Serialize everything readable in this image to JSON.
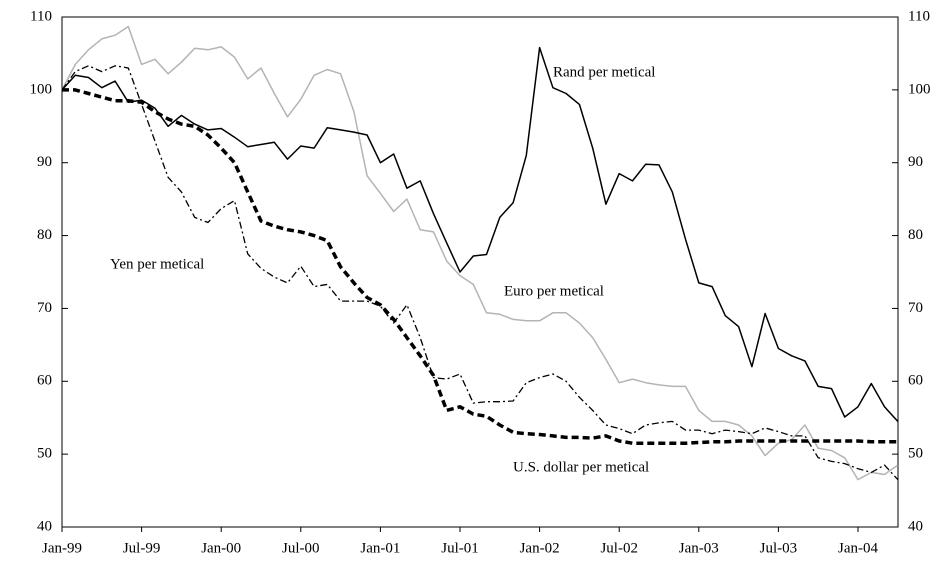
{
  "chart_data": {
    "type": "line",
    "categories": [
      "Jan-99",
      null,
      null,
      null,
      null,
      null,
      "Jul-99",
      null,
      null,
      null,
      null,
      null,
      "Jan-00",
      null,
      null,
      null,
      null,
      null,
      "Jul-00",
      null,
      null,
      null,
      null,
      null,
      "Jan-01",
      null,
      null,
      null,
      null,
      null,
      "Jul-01",
      null,
      null,
      null,
      null,
      null,
      "Jan-02",
      null,
      null,
      null,
      null,
      null,
      "Jul-02",
      null,
      null,
      null,
      null,
      null,
      "Jan-03",
      null,
      null,
      null,
      null,
      null,
      "Jul-03",
      null,
      null,
      null,
      null,
      null,
      "Jan-04",
      null,
      null,
      null
    ],
    "ylim": [
      40,
      110
    ],
    "yticks": [
      40,
      50,
      60,
      70,
      80,
      90,
      100,
      110
    ],
    "y2lim": [
      40,
      110
    ],
    "y2ticks": [
      40,
      50,
      60,
      70,
      80,
      90,
      100,
      110
    ],
    "series": [
      {
        "name": "Rand per metical",
        "color": "#000000",
        "values": [
          100,
          102,
          101.7,
          100.3,
          101.2,
          98.3,
          98.6,
          97.5,
          95,
          96.5,
          95.3,
          94.5,
          94.7,
          93.5,
          92.2,
          92.5,
          92.8,
          90.5,
          92.3,
          92,
          94.8,
          94.5,
          94.2,
          93.8,
          90,
          91.2,
          86.5,
          87.5,
          83,
          79,
          75,
          77.2,
          77.4,
          82.5,
          84.5,
          91,
          105.8,
          100.3,
          99.5,
          98,
          92,
          84.3,
          88.5,
          87.5,
          89.8,
          89.7,
          86,
          79.5,
          73.5,
          73,
          69,
          67.5,
          62,
          69.3,
          64.5,
          63.5,
          62.8,
          59.3,
          59,
          55.1,
          56.5,
          59.7,
          56.5,
          54.5
        ]
      },
      {
        "name": "Euro per metical",
        "color": "#b4b4b4",
        "values": [
          100,
          103.5,
          105.5,
          107,
          107.5,
          108.7,
          103.5,
          104.2,
          102.2,
          103.8,
          105.7,
          105.5,
          105.9,
          104.5,
          101.5,
          103,
          99.5,
          96.3,
          98.7,
          102,
          102.8,
          102.2,
          97,
          88.2,
          85.8,
          83.3,
          85,
          80.8,
          80.5,
          76.5,
          74.5,
          73.3,
          69.4,
          69.2,
          68.5,
          68.3,
          68.3,
          69.4,
          69.4,
          68,
          66,
          63,
          59.8,
          60.3,
          59.8,
          59.5,
          59.3,
          59.3,
          56,
          54.5,
          54.5,
          54,
          52.5,
          49.8,
          51.5,
          52,
          54,
          50.8,
          50.5,
          49.5,
          46.5,
          47.5,
          47.2,
          48.5
        ]
      },
      {
        "name": "Yen per metical",
        "color": "#000000",
        "values": [
          100,
          102.5,
          103.3,
          102.5,
          103.3,
          103,
          98,
          93,
          88,
          86,
          82.5,
          81.8,
          83.7,
          84.8,
          77.5,
          75.5,
          74.3,
          73.5,
          75.8,
          73,
          73.3,
          71,
          71,
          71,
          70.3,
          68,
          70.5,
          66,
          60.5,
          60.3,
          61,
          57,
          57.2,
          57.2,
          57.3,
          59.8,
          60.5,
          61,
          60,
          57.8,
          56,
          54,
          53.5,
          52.8,
          54,
          54.3,
          54.5,
          53.3,
          53.3,
          52.8,
          53.3,
          53.1,
          52.8,
          53.6,
          53.1,
          52.5,
          52.5,
          49.5,
          49,
          48.7,
          48,
          47.5,
          48.5,
          46.5
        ]
      },
      {
        "name": "U.S. dollar per metical",
        "color": "#000000",
        "values": [
          100,
          100,
          99.5,
          99,
          98.5,
          98.5,
          98.3,
          97,
          96,
          95.3,
          95,
          93.8,
          92,
          90,
          86,
          82,
          81.3,
          80.8,
          80.5,
          80,
          79.3,
          75.7,
          73.5,
          71.5,
          70.5,
          68.5,
          66,
          63.5,
          60.8,
          56,
          56.5,
          55.5,
          55.2,
          54,
          53,
          52.8,
          52.7,
          52.5,
          52.3,
          52.3,
          52.2,
          52.5,
          51.8,
          51.5,
          51.5,
          51.5,
          51.5,
          51.5,
          51.6,
          51.7,
          51.7,
          51.8,
          51.8,
          51.8,
          51.8,
          51.8,
          51.8,
          51.8,
          51.8,
          51.8,
          51.8,
          51.7,
          51.7,
          51.7
        ]
      }
    ]
  }
}
